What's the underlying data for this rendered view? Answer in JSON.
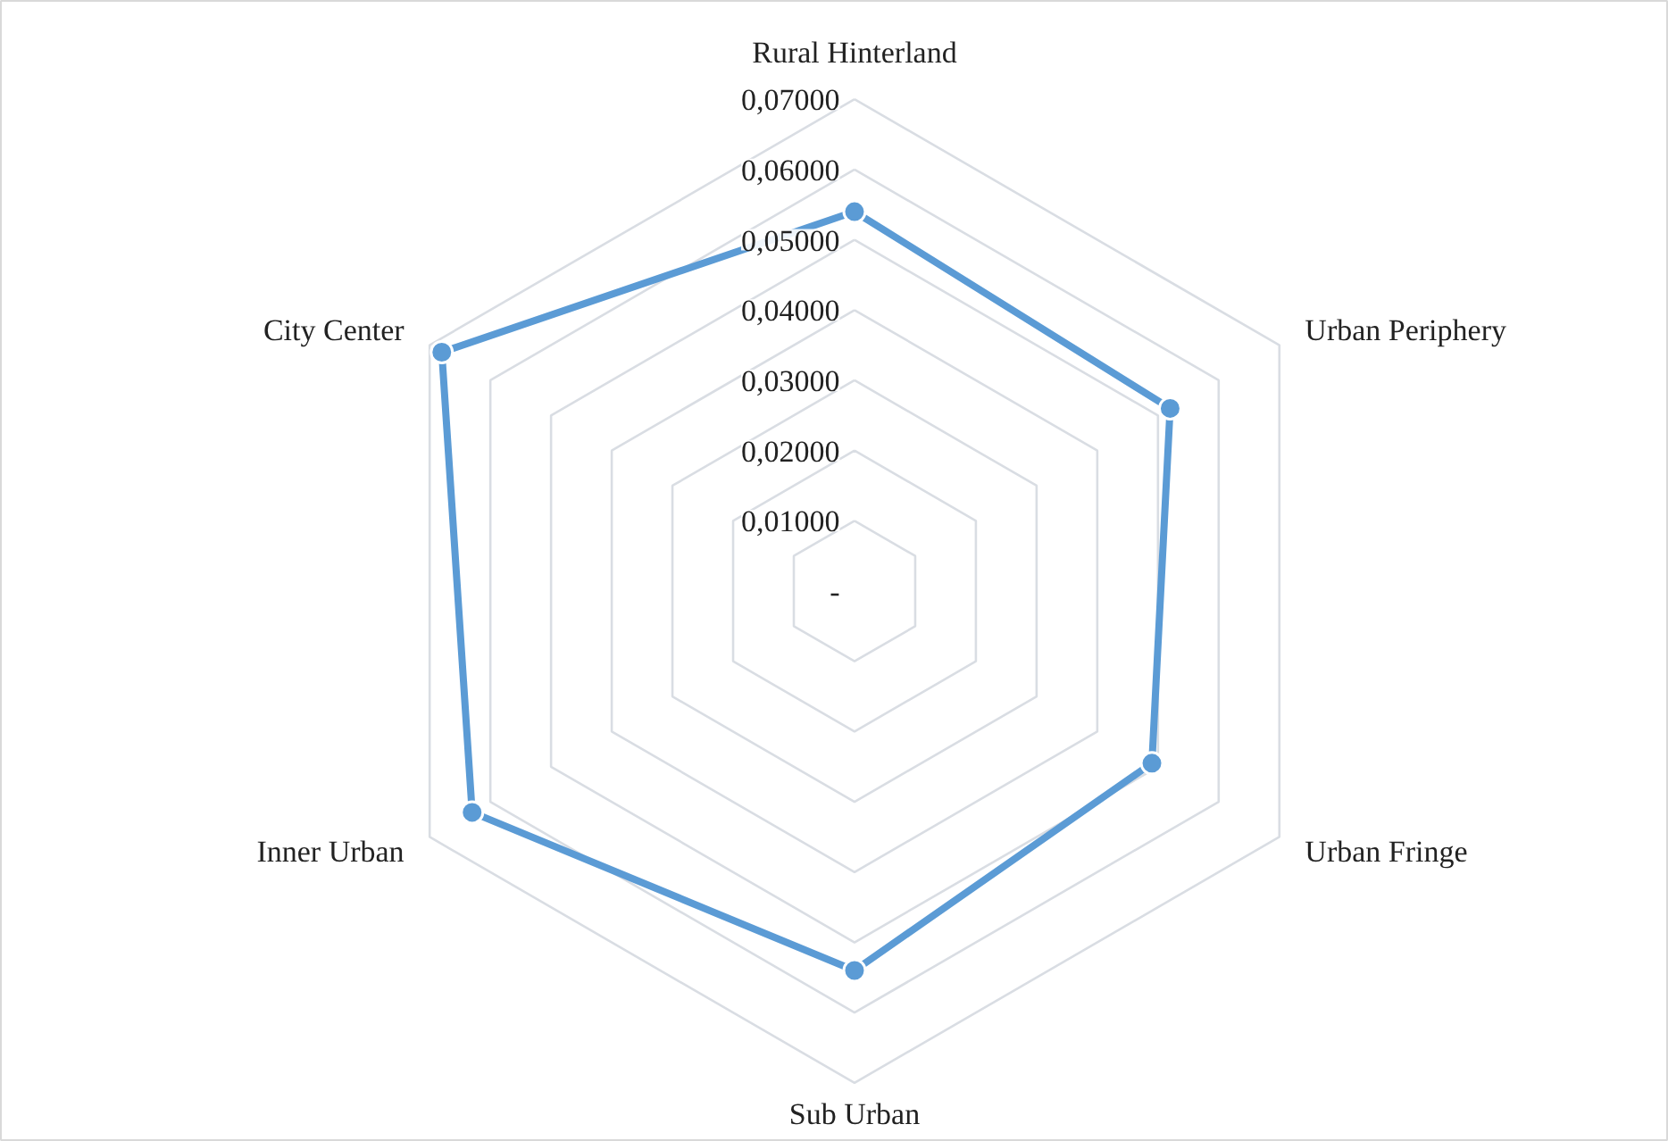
{
  "chart_data": {
    "type": "radar",
    "categories": [
      "Rural Hinterland",
      "Urban Periphery",
      "Urban Fringe",
      "Sub Urban",
      "Inner Urban",
      "City Center"
    ],
    "series": [
      {
        "color": "#5b9bd5",
        "values": [
          0.054,
          0.052,
          0.049,
          0.054,
          0.063,
          0.068
        ]
      }
    ],
    "ylim": [
      0,
      0.07
    ],
    "yticks": [
      {
        "value": 0,
        "label": "-"
      },
      {
        "value": 0.01,
        "label": "0,01000"
      },
      {
        "value": 0.02,
        "label": "0,02000"
      },
      {
        "value": 0.03,
        "label": "0,03000"
      },
      {
        "value": 0.04,
        "label": "0,04000"
      },
      {
        "value": 0.05,
        "label": "0,05000"
      },
      {
        "value": 0.06,
        "label": "0,06000"
      },
      {
        "value": 0.07,
        "label": "0,07000"
      }
    ],
    "grid": true,
    "marker": "circle"
  }
}
